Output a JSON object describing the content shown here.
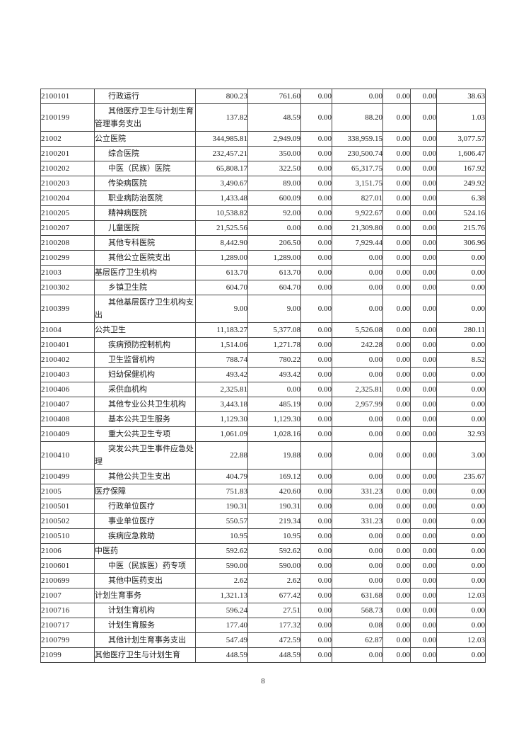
{
  "page": {
    "number": "8"
  },
  "table": {
    "rows": [
      {
        "code": "2100101",
        "name": "行政运行",
        "indent": true,
        "values": [
          "800.23",
          "761.60",
          "0.00",
          "0.00",
          "0.00",
          "0.00",
          "38.63"
        ]
      },
      {
        "code": "2100199",
        "name": "其他医疗卫生与计划生育管理事务支出",
        "indent": true,
        "values": [
          "137.82",
          "48.59",
          "0.00",
          "88.20",
          "0.00",
          "0.00",
          "1.03"
        ]
      },
      {
        "code": "21002",
        "name": "公立医院",
        "indent": false,
        "values": [
          "344,985.81",
          "2,949.09",
          "0.00",
          "338,959.15",
          "0.00",
          "0.00",
          "3,077.57"
        ]
      },
      {
        "code": "2100201",
        "name": "综合医院",
        "indent": true,
        "values": [
          "232,457.21",
          "350.00",
          "0.00",
          "230,500.74",
          "0.00",
          "0.00",
          "1,606.47"
        ]
      },
      {
        "code": "2100202",
        "name": "中医（民族）医院",
        "indent": true,
        "values": [
          "65,808.17",
          "322.50",
          "0.00",
          "65,317.75",
          "0.00",
          "0.00",
          "167.92"
        ]
      },
      {
        "code": "2100203",
        "name": "传染病医院",
        "indent": true,
        "values": [
          "3,490.67",
          "89.00",
          "0.00",
          "3,151.75",
          "0.00",
          "0.00",
          "249.92"
        ]
      },
      {
        "code": "2100204",
        "name": "职业病防治医院",
        "indent": true,
        "values": [
          "1,433.48",
          "600.09",
          "0.00",
          "827.01",
          "0.00",
          "0.00",
          "6.38"
        ]
      },
      {
        "code": "2100205",
        "name": "精神病医院",
        "indent": true,
        "values": [
          "10,538.82",
          "92.00",
          "0.00",
          "9,922.67",
          "0.00",
          "0.00",
          "524.16"
        ]
      },
      {
        "code": "2100207",
        "name": "儿童医院",
        "indent": true,
        "values": [
          "21,525.56",
          "0.00",
          "0.00",
          "21,309.80",
          "0.00",
          "0.00",
          "215.76"
        ]
      },
      {
        "code": "2100208",
        "name": "其他专科医院",
        "indent": true,
        "values": [
          "8,442.90",
          "206.50",
          "0.00",
          "7,929.44",
          "0.00",
          "0.00",
          "306.96"
        ]
      },
      {
        "code": "2100299",
        "name": "其他公立医院支出",
        "indent": true,
        "values": [
          "1,289.00",
          "1,289.00",
          "0.00",
          "0.00",
          "0.00",
          "0.00",
          "0.00"
        ]
      },
      {
        "code": "21003",
        "name": "基层医疗卫生机构",
        "indent": false,
        "values": [
          "613.70",
          "613.70",
          "0.00",
          "0.00",
          "0.00",
          "0.00",
          "0.00"
        ]
      },
      {
        "code": "2100302",
        "name": "乡镇卫生院",
        "indent": true,
        "values": [
          "604.70",
          "604.70",
          "0.00",
          "0.00",
          "0.00",
          "0.00",
          "0.00"
        ]
      },
      {
        "code": "2100399",
        "name": "其他基层医疗卫生机构支出",
        "indent": true,
        "values": [
          "9.00",
          "9.00",
          "0.00",
          "0.00",
          "0.00",
          "0.00",
          "0.00"
        ]
      },
      {
        "code": "21004",
        "name": "公共卫生",
        "indent": false,
        "values": [
          "11,183.27",
          "5,377.08",
          "0.00",
          "5,526.08",
          "0.00",
          "0.00",
          "280.11"
        ]
      },
      {
        "code": "2100401",
        "name": "疾病预防控制机构",
        "indent": true,
        "values": [
          "1,514.06",
          "1,271.78",
          "0.00",
          "242.28",
          "0.00",
          "0.00",
          "0.00"
        ]
      },
      {
        "code": "2100402",
        "name": "卫生监督机构",
        "indent": true,
        "values": [
          "788.74",
          "780.22",
          "0.00",
          "0.00",
          "0.00",
          "0.00",
          "8.52"
        ]
      },
      {
        "code": "2100403",
        "name": "妇幼保健机构",
        "indent": true,
        "values": [
          "493.42",
          "493.42",
          "0.00",
          "0.00",
          "0.00",
          "0.00",
          "0.00"
        ]
      },
      {
        "code": "2100406",
        "name": "采供血机构",
        "indent": true,
        "values": [
          "2,325.81",
          "0.00",
          "0.00",
          "2,325.81",
          "0.00",
          "0.00",
          "0.00"
        ]
      },
      {
        "code": "2100407",
        "name": "其他专业公共卫生机构",
        "indent": true,
        "values": [
          "3,443.18",
          "485.19",
          "0.00",
          "2,957.99",
          "0.00",
          "0.00",
          "0.00"
        ]
      },
      {
        "code": "2100408",
        "name": "基本公共卫生服务",
        "indent": true,
        "values": [
          "1,129.30",
          "1,129.30",
          "0.00",
          "0.00",
          "0.00",
          "0.00",
          "0.00"
        ]
      },
      {
        "code": "2100409",
        "name": "重大公共卫生专项",
        "indent": true,
        "values": [
          "1,061.09",
          "1,028.16",
          "0.00",
          "0.00",
          "0.00",
          "0.00",
          "32.93"
        ]
      },
      {
        "code": "2100410",
        "name": "突发公共卫生事件应急处理",
        "indent": true,
        "values": [
          "22.88",
          "19.88",
          "0.00",
          "0.00",
          "0.00",
          "0.00",
          "3.00"
        ]
      },
      {
        "code": "2100499",
        "name": "其他公共卫生支出",
        "indent": true,
        "values": [
          "404.79",
          "169.12",
          "0.00",
          "0.00",
          "0.00",
          "0.00",
          "235.67"
        ]
      },
      {
        "code": "21005",
        "name": "医疗保障",
        "indent": false,
        "values": [
          "751.83",
          "420.60",
          "0.00",
          "331.23",
          "0.00",
          "0.00",
          "0.00"
        ]
      },
      {
        "code": "2100501",
        "name": "行政单位医疗",
        "indent": true,
        "values": [
          "190.31",
          "190.31",
          "0.00",
          "0.00",
          "0.00",
          "0.00",
          "0.00"
        ]
      },
      {
        "code": "2100502",
        "name": "事业单位医疗",
        "indent": true,
        "values": [
          "550.57",
          "219.34",
          "0.00",
          "331.23",
          "0.00",
          "0.00",
          "0.00"
        ]
      },
      {
        "code": "2100510",
        "name": "疾病应急救助",
        "indent": true,
        "values": [
          "10.95",
          "10.95",
          "0.00",
          "0.00",
          "0.00",
          "0.00",
          "0.00"
        ]
      },
      {
        "code": "21006",
        "name": "中医药",
        "indent": false,
        "values": [
          "592.62",
          "592.62",
          "0.00",
          "0.00",
          "0.00",
          "0.00",
          "0.00"
        ]
      },
      {
        "code": "2100601",
        "name": "中医（民族医）药专项",
        "indent": true,
        "values": [
          "590.00",
          "590.00",
          "0.00",
          "0.00",
          "0.00",
          "0.00",
          "0.00"
        ]
      },
      {
        "code": "2100699",
        "name": "其他中医药支出",
        "indent": true,
        "values": [
          "2.62",
          "2.62",
          "0.00",
          "0.00",
          "0.00",
          "0.00",
          "0.00"
        ]
      },
      {
        "code": "21007",
        "name": "计划生育事务",
        "indent": false,
        "values": [
          "1,321.13",
          "677.42",
          "0.00",
          "631.68",
          "0.00",
          "0.00",
          "12.03"
        ]
      },
      {
        "code": "2100716",
        "name": "计划生育机构",
        "indent": true,
        "values": [
          "596.24",
          "27.51",
          "0.00",
          "568.73",
          "0.00",
          "0.00",
          "0.00"
        ]
      },
      {
        "code": "2100717",
        "name": "计划生育服务",
        "indent": true,
        "values": [
          "177.40",
          "177.32",
          "0.00",
          "0.08",
          "0.00",
          "0.00",
          "0.00"
        ]
      },
      {
        "code": "2100799",
        "name": "其他计划生育事务支出",
        "indent": true,
        "values": [
          "547.49",
          "472.59",
          "0.00",
          "62.87",
          "0.00",
          "0.00",
          "12.03"
        ]
      },
      {
        "code": "21099",
        "name": "其他医疗卫生与计划生育",
        "indent": false,
        "values": [
          "448.59",
          "448.59",
          "0.00",
          "0.00",
          "0.00",
          "0.00",
          "0.00"
        ]
      }
    ]
  }
}
